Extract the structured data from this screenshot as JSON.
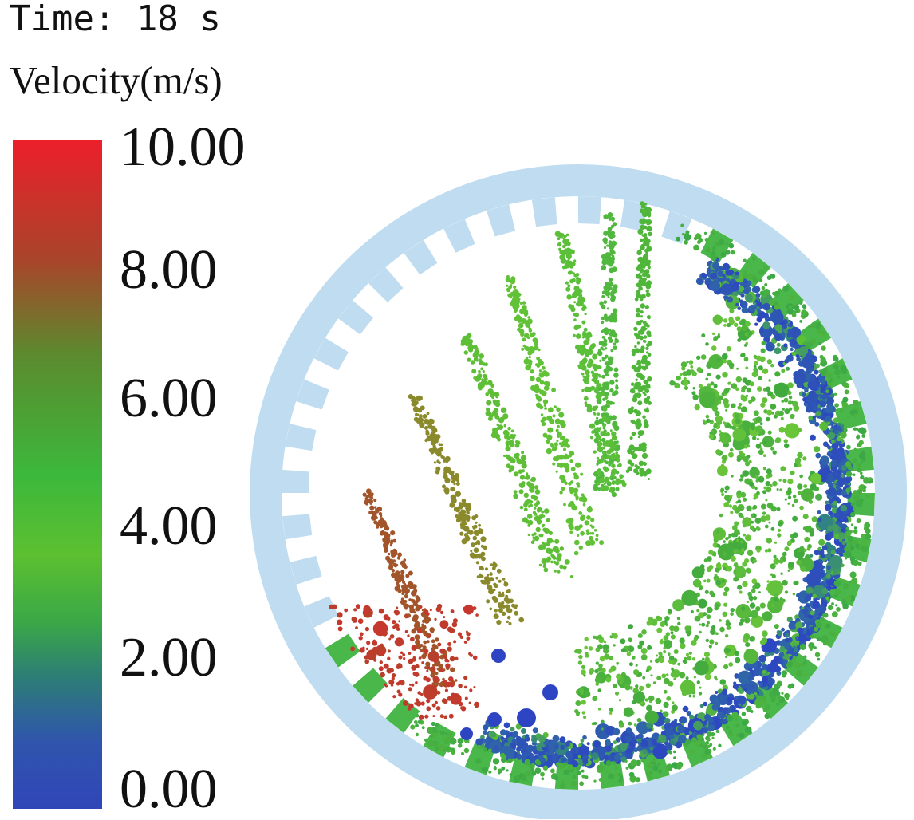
{
  "header": {
    "time_text": "Time: 18 s"
  },
  "legend": {
    "title": "Velocity(m/s)",
    "ticks": [
      "10.00",
      "8.00",
      "6.00",
      "4.00",
      "2.00",
      "0.00"
    ],
    "min": 0,
    "max": 10,
    "colors": [
      "#e4232b",
      "#9b4a23",
      "#3aa83a",
      "#5cc030",
      "#2f8f5a",
      "#2f49b8"
    ]
  },
  "scene": {
    "drum_color": "#bfdcf0",
    "lifter_color": "#4ab74a",
    "fast_color": "#c8362e",
    "mid_color": "#5cc033",
    "slow_color": "#2d45c2"
  }
}
